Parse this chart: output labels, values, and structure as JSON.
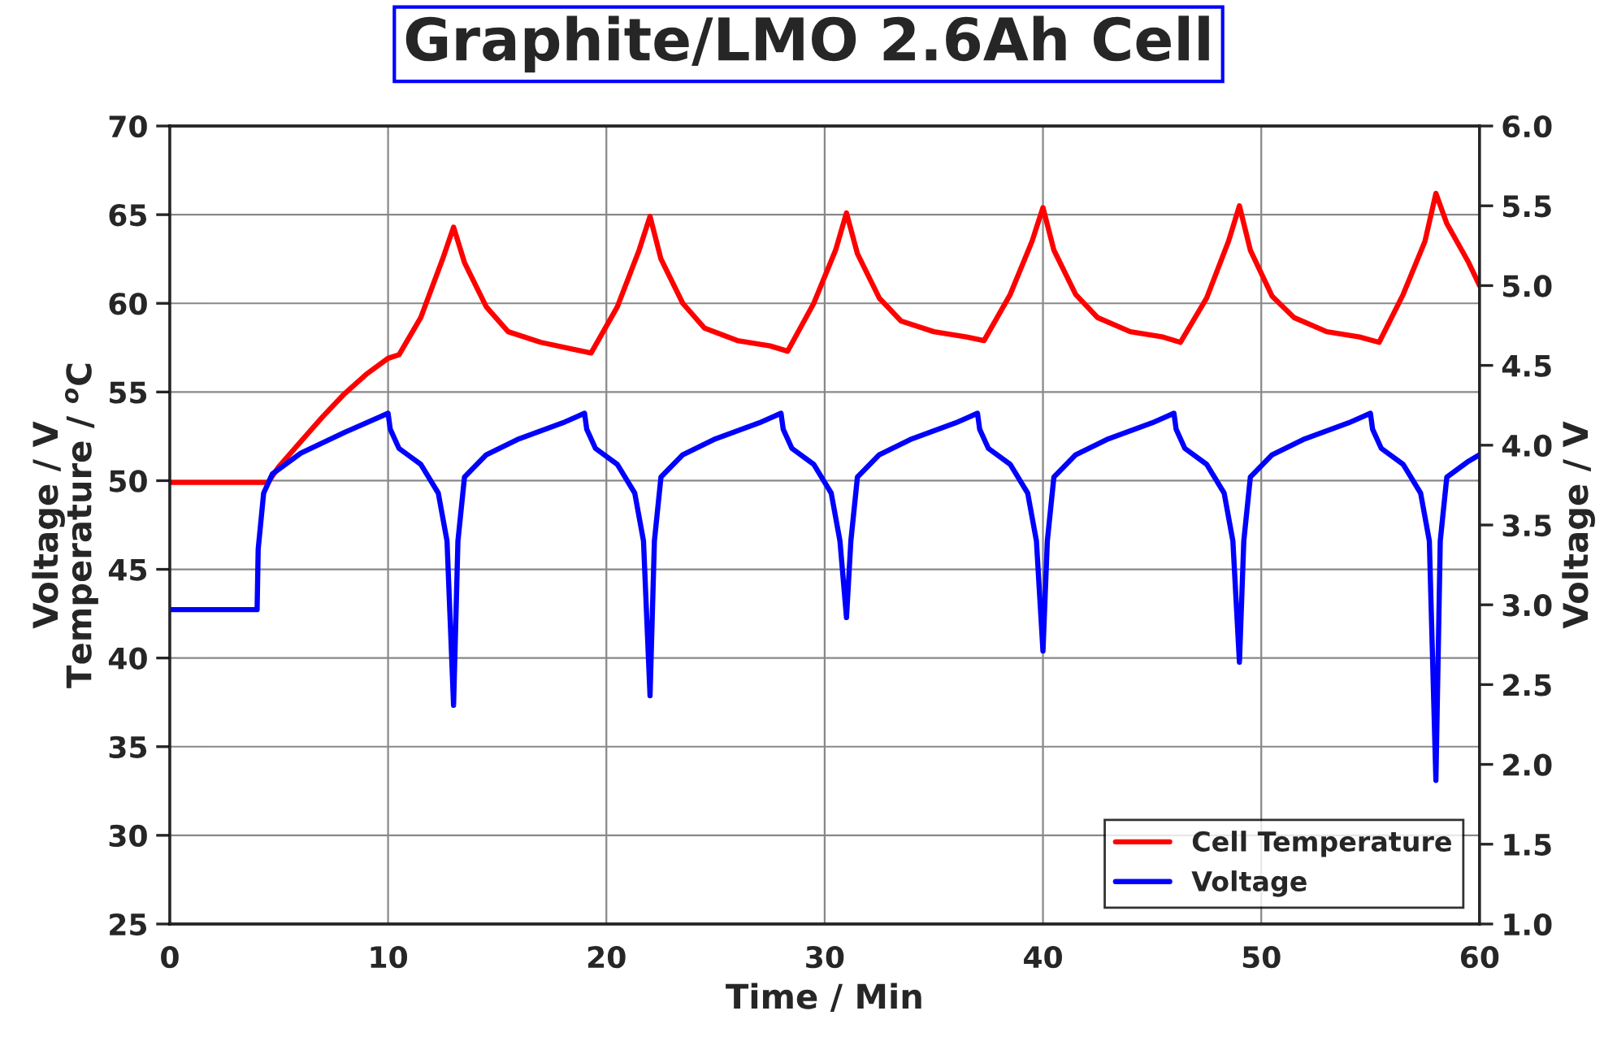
{
  "chart_data": {
    "type": "line",
    "title": "Graphite/LMO 2.6Ah Cell",
    "xlabel": "Time / Min",
    "ylabel": "Voltage / V\nTemperature / $^{o}$C",
    "y2label": "Voltage / V",
    "xlim": [
      0,
      60
    ],
    "xticks": [
      0,
      10,
      20,
      30,
      40,
      50,
      60
    ],
    "ylim": [
      25,
      70
    ],
    "yticks": [
      25,
      30,
      35,
      40,
      45,
      50,
      55,
      60,
      65,
      70
    ],
    "y2lim": [
      1.0,
      6.0
    ],
    "y2ticks": [
      {
        "value": 1.0,
        "label": "1.0"
      },
      1.5,
      {
        "value": 2.0,
        "label": "2.0"
      },
      2.5,
      {
        "value": 3.0,
        "label": "3.0"
      },
      3.5,
      {
        "value": 4.0,
        "label": "4.0"
      },
      4.5,
      {
        "value": 5.0,
        "label": "5.0"
      },
      5.5,
      {
        "value": 6.0,
        "label": "6.0"
      }
    ],
    "grid": true,
    "legend": "bottom right",
    "marker": "none",
    "line_style": "solid",
    "series": [
      {
        "name": "Cell Temperature",
        "color": "#ff0000",
        "x": [
          0,
          4.5,
          5,
          6,
          7,
          8,
          9,
          10,
          10.5,
          11.5,
          12.5,
          13,
          13.5,
          14.5,
          15.5,
          17,
          18.5,
          19.3,
          20.5,
          21.5,
          22,
          22.5,
          23.5,
          24.5,
          26,
          27.5,
          28.3,
          29.5,
          30.5,
          31,
          31.5,
          32.5,
          33.5,
          35,
          36.5,
          37.3,
          38.5,
          39.5,
          40,
          40.5,
          41.5,
          42.5,
          44,
          45.5,
          46.3,
          47.5,
          48.5,
          49,
          49.5,
          50.5,
          51.5,
          53,
          54.5,
          55.4,
          56.5,
          57.5,
          58,
          58.5,
          59.5,
          60
        ],
        "values": [
          49.9,
          49.9,
          50.8,
          52.2,
          53.6,
          54.9,
          56.0,
          56.9,
          57.1,
          59.2,
          62.5,
          64.3,
          62.3,
          59.8,
          58.4,
          57.8,
          57.4,
          57.2,
          59.8,
          63,
          64.9,
          62.5,
          60,
          58.6,
          57.9,
          57.6,
          57.3,
          60,
          63,
          65.1,
          62.8,
          60.3,
          59,
          58.4,
          58.1,
          57.9,
          60.5,
          63.5,
          65.4,
          63,
          60.5,
          59.2,
          58.4,
          58.1,
          57.8,
          60.3,
          63.5,
          65.5,
          63,
          60.4,
          59.2,
          58.4,
          58.1,
          57.8,
          60.5,
          63.5,
          66.2,
          64.5,
          62.3,
          61
        ]
      },
      {
        "name": "Voltage",
        "color": "#0000ff",
        "axis": "y2",
        "x": [
          0,
          4,
          4.05,
          4.3,
          4.7,
          6,
          8,
          10,
          10.1,
          10.5,
          11.5,
          12.3,
          12.7,
          13,
          13.2,
          13.5,
          14.5,
          16,
          18,
          19,
          19.1,
          19.5,
          20.5,
          21.3,
          21.7,
          22,
          22.2,
          22.5,
          23.5,
          25,
          27,
          28,
          28.1,
          28.5,
          29.5,
          30.3,
          30.7,
          31,
          31.2,
          31.5,
          32.5,
          34,
          36,
          37,
          37.1,
          37.5,
          38.5,
          39.3,
          39.7,
          40,
          40.2,
          40.5,
          41.5,
          43,
          45,
          46,
          46.1,
          46.5,
          47.5,
          48.3,
          48.7,
          49,
          49.2,
          49.5,
          50.5,
          52,
          54,
          55,
          55.1,
          55.5,
          56.5,
          57.3,
          57.7,
          58,
          58.2,
          58.5,
          59.5,
          60
        ],
        "values": [
          2.97,
          2.97,
          3.35,
          3.7,
          3.82,
          3.95,
          4.08,
          4.2,
          4.1,
          3.98,
          3.88,
          3.7,
          3.4,
          2.37,
          3.4,
          3.8,
          3.94,
          4.04,
          4.14,
          4.2,
          4.1,
          3.98,
          3.88,
          3.7,
          3.4,
          2.43,
          3.4,
          3.8,
          3.94,
          4.04,
          4.14,
          4.2,
          4.1,
          3.98,
          3.88,
          3.7,
          3.4,
          2.92,
          3.4,
          3.8,
          3.94,
          4.04,
          4.14,
          4.2,
          4.1,
          3.98,
          3.88,
          3.7,
          3.4,
          2.71,
          3.4,
          3.8,
          3.94,
          4.04,
          4.14,
          4.2,
          4.1,
          3.98,
          3.88,
          3.7,
          3.4,
          2.64,
          3.4,
          3.8,
          3.94,
          4.04,
          4.14,
          4.2,
          4.1,
          3.98,
          3.88,
          3.7,
          3.4,
          1.9,
          3.4,
          3.8,
          3.9,
          3.94
        ]
      }
    ]
  }
}
